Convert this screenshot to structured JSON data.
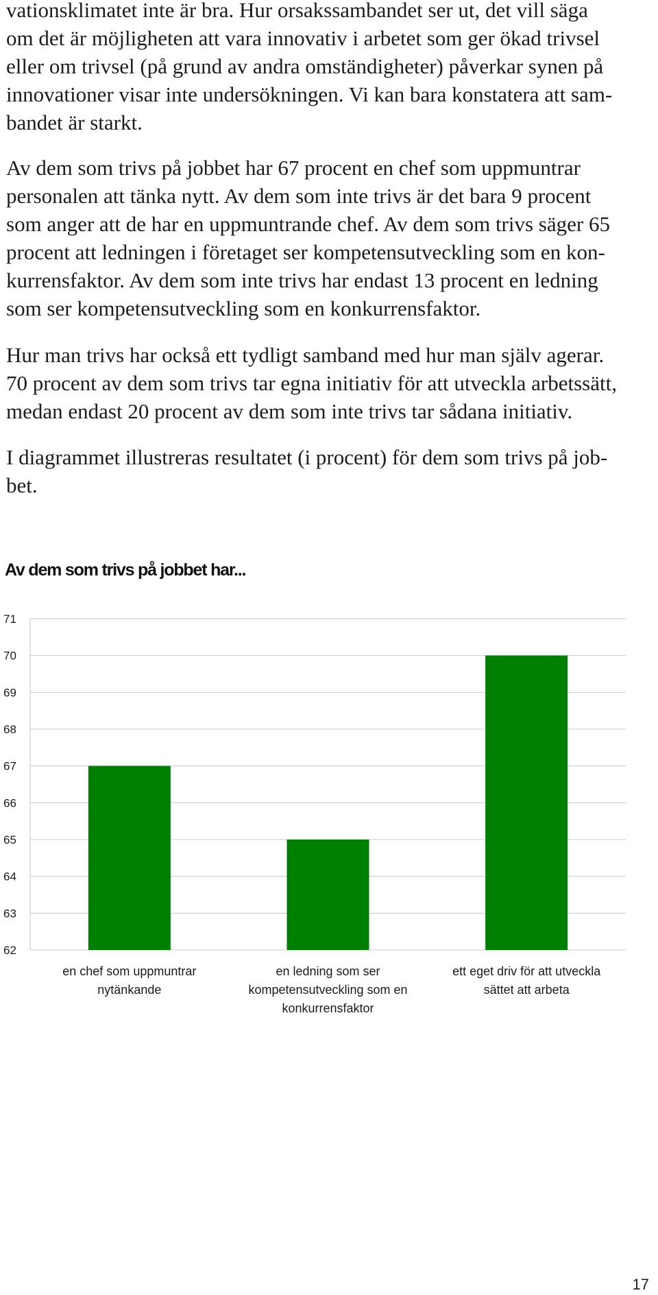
{
  "paragraphs": [
    [
      "vationsklimatet inte är bra. Hur orsakssambandet ser ut, det vill säga",
      "om det är möjligheten att vara innovativ i arbetet som ger ökad trivsel",
      "eller om trivsel (på grund av andra omständigheter) påverkar synen på",
      "innovationer visar inte undersökningen. Vi kan bara konstatera att sam-",
      "bandet är starkt."
    ],
    [
      "Av dem som trivs på jobbet har 67 procent en chef som uppmuntrar",
      "personalen att tänka nytt. Av dem som inte trivs är det bara 9 procent",
      "som anger att de har en uppmuntrande chef. Av dem som trivs säger 65",
      "procent att ledningen i företaget ser kompetensutveckling som en kon-",
      "kurrensfaktor. Av dem som inte trivs har endast 13 procent en ledning",
      "som ser kompetensutveckling som en konkurrensfaktor."
    ],
    [
      "Hur man trivs har också ett tydligt samband med hur man själv agerar.",
      "70 procent av dem som trivs tar egna initiativ för att utveckla arbetssätt,",
      "medan endast 20 procent av dem som inte trivs tar sådana initiativ."
    ],
    [
      "I diagrammet illustreras resultatet (i procent) för dem som trivs på job-",
      "bet."
    ]
  ],
  "chart_data": {
    "type": "bar",
    "title": "Av dem som trivs på jobbet har...",
    "categories": [
      [
        "en chef som uppmuntrar",
        "nytänkande"
      ],
      [
        "en ledning som ser",
        "kompetensutveckling som en",
        "konkurrensfaktor"
      ],
      [
        "ett eget driv för att utveckla",
        "sättet att arbeta"
      ]
    ],
    "values": [
      67,
      65,
      70
    ],
    "ylim": [
      62,
      71
    ],
    "yticks": [
      62,
      63,
      64,
      65,
      66,
      67,
      68,
      69,
      70,
      71
    ],
    "xlabel": "",
    "ylabel": "",
    "grid": true,
    "legend": false,
    "bar_color": "#008000",
    "grid_color": "#c8c8c8"
  },
  "page_number": "17"
}
